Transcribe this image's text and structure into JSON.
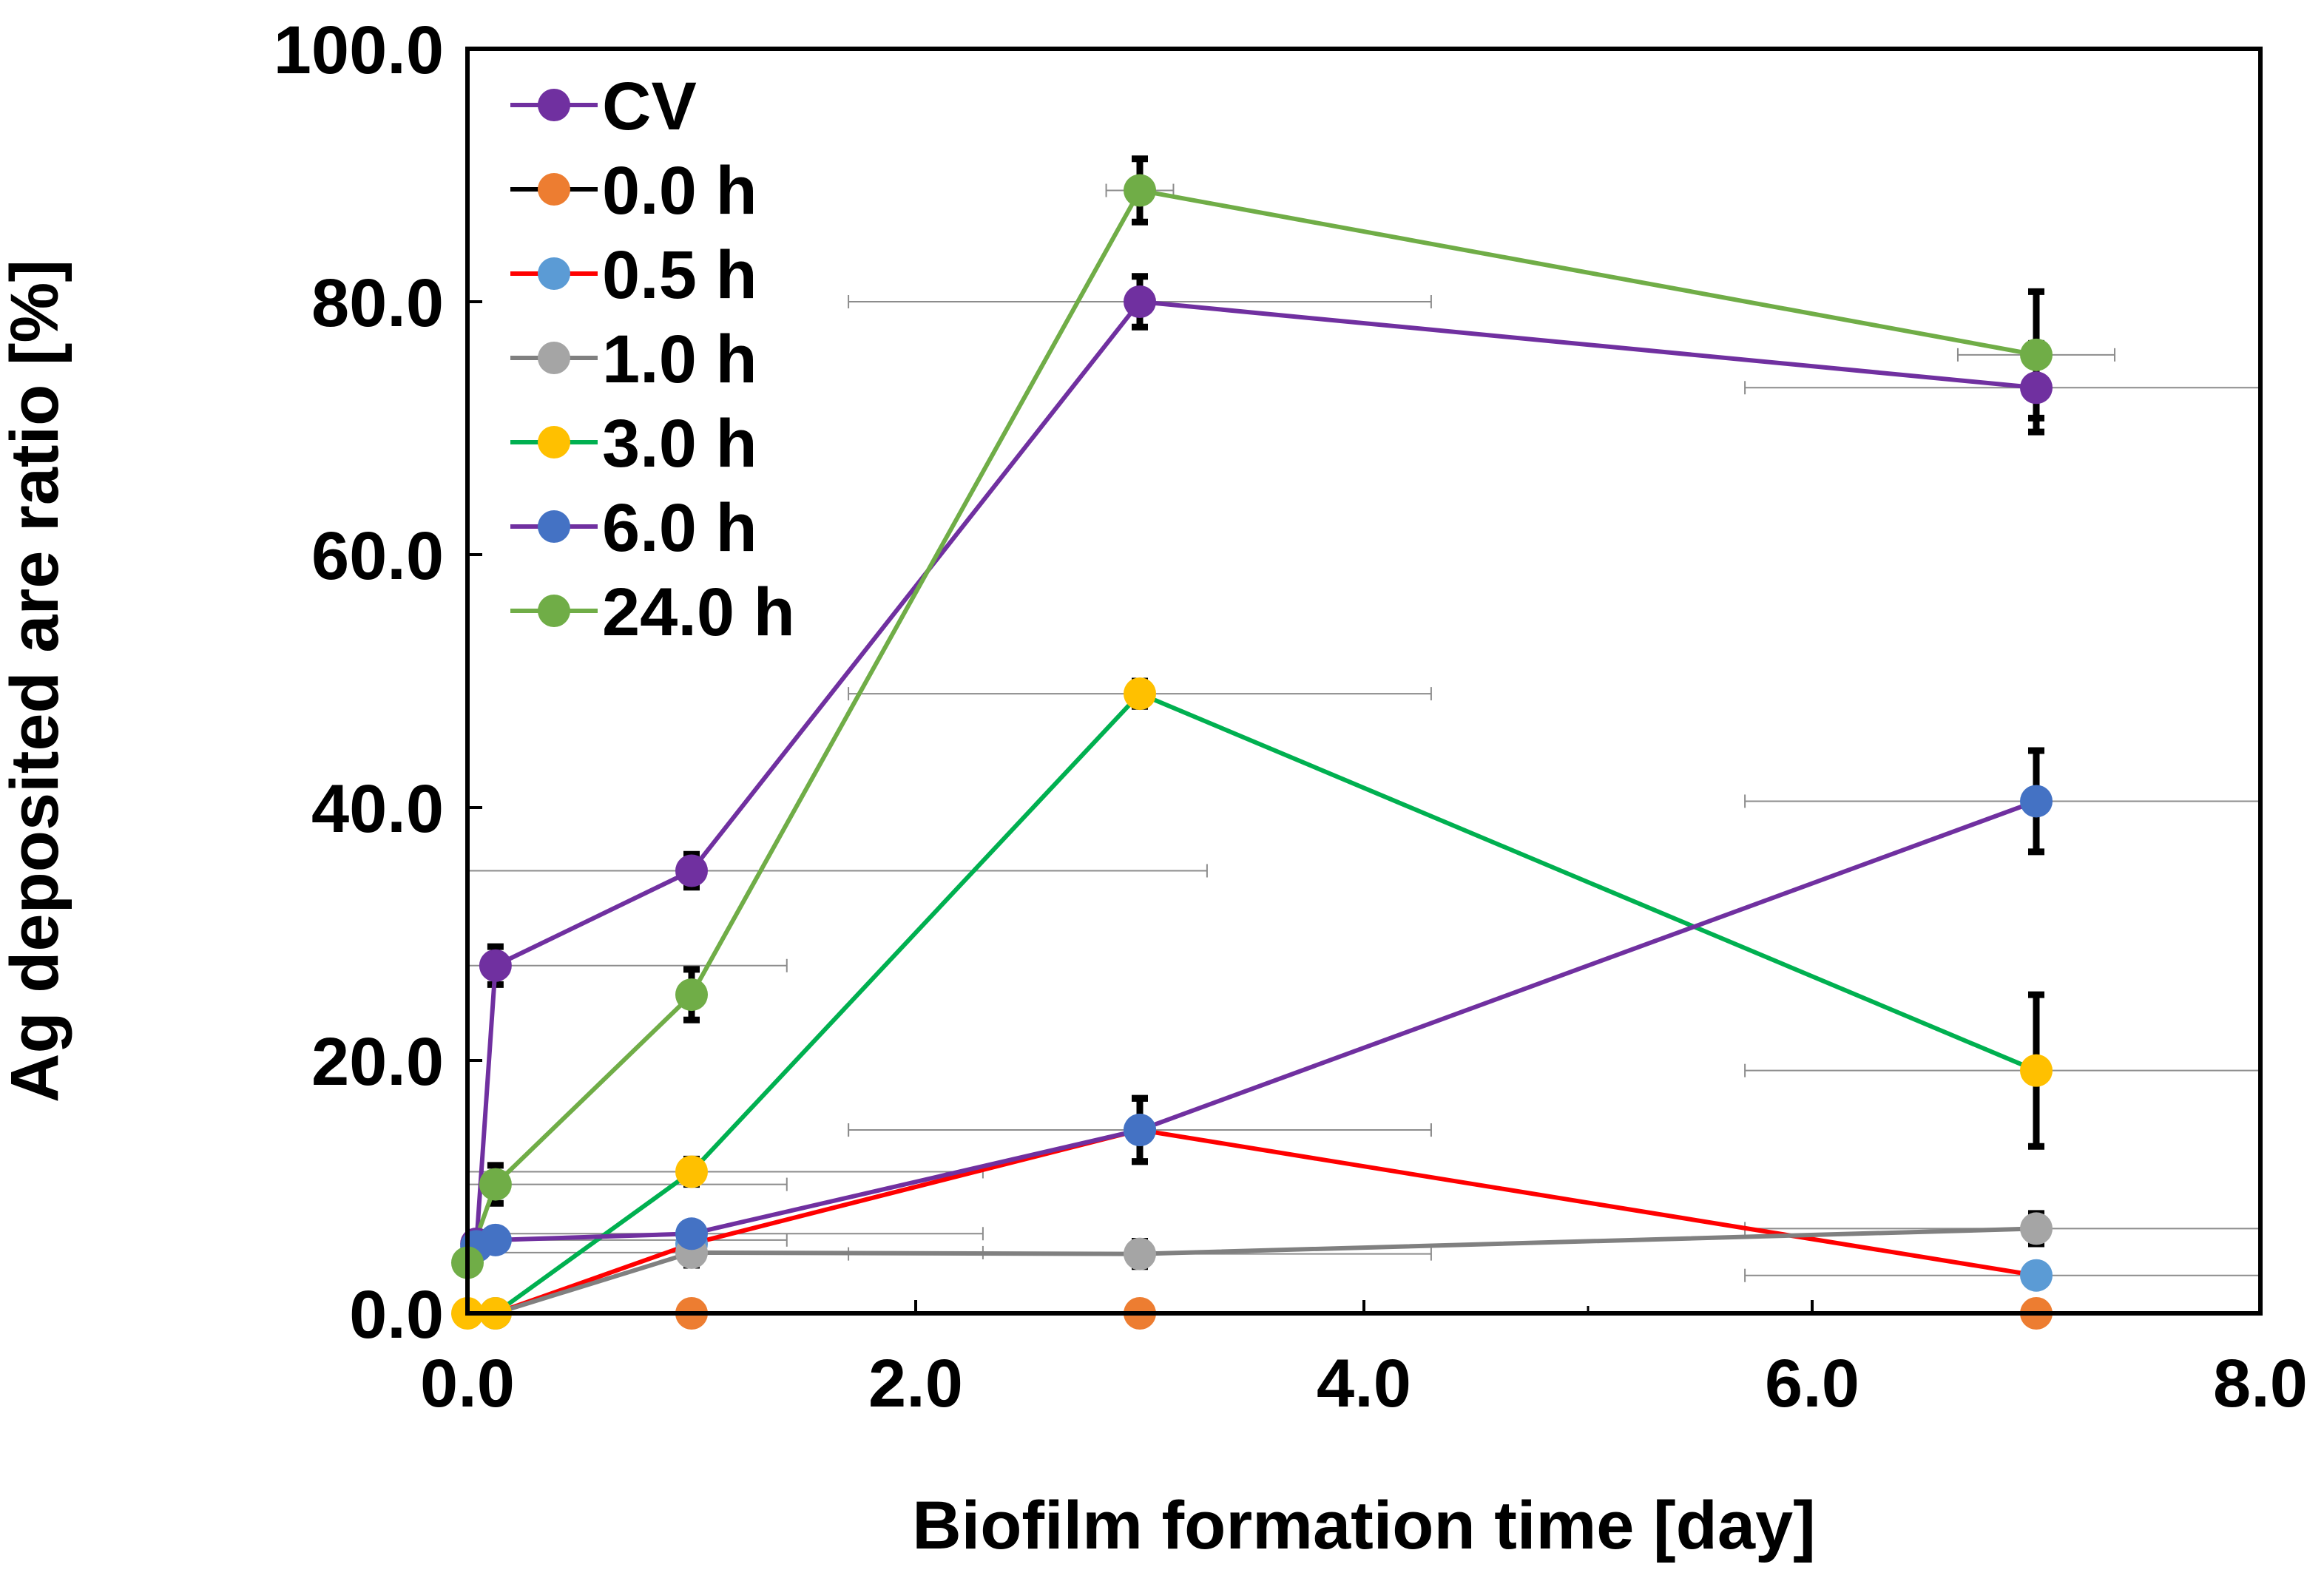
{
  "chart_data": {
    "type": "line",
    "title": "",
    "xlabel": "Biofilm formation time [day]",
    "ylabel": "Ag deposited are ratio [%]",
    "xlim": [
      0,
      8
    ],
    "ylim": [
      0,
      100
    ],
    "x_ticks": [
      "0.0",
      "2.0",
      "4.0",
      "6.0",
      "8.0"
    ],
    "y_ticks": [
      "0.0",
      "20.0",
      "40.0",
      "60.0",
      "80.0",
      "100.0"
    ],
    "legend_position": "top-left",
    "series": [
      {
        "name": "CV",
        "line_color": "#7030A0",
        "marker_color": "#7030A0",
        "points": [
          {
            "x": 0.04,
            "y": 5.5,
            "yerr": 0.5
          },
          {
            "x": 0.125,
            "y": 27.5,
            "yerr": 1.5,
            "xerr": 1.3
          },
          {
            "x": 1.0,
            "y": 35.0,
            "yerr": 1.3,
            "xerr": 2.3
          },
          {
            "x": 3.0,
            "y": 80.0,
            "yerr": 2.0,
            "xerr": 1.3
          },
          {
            "x": 7.0,
            "y": 73.2,
            "yerr": 3.5,
            "xerr": 1.3
          }
        ]
      },
      {
        "name": "0.0 h",
        "line_color": "#000000",
        "marker_color": "#ED7D31",
        "points": [
          {
            "x": 1.0,
            "y": 0.0
          },
          {
            "x": 3.0,
            "y": 0.0
          },
          {
            "x": 7.0,
            "y": 0.0
          }
        ]
      },
      {
        "name": "0.5 h",
        "line_color": "#FF0000",
        "marker_color": "#5B9BD5",
        "points": [
          {
            "x": 0.125,
            "y": 0.0
          },
          {
            "x": 1.0,
            "y": 5.5,
            "yerr": 0.8
          },
          {
            "x": 3.0,
            "y": 14.5,
            "yerr": 2.5,
            "xerr": 1.3
          },
          {
            "x": 7.0,
            "y": 3.0,
            "xerr": 1.3
          }
        ]
      },
      {
        "name": "1.0 h",
        "line_color": "#808080",
        "marker_color": "#A5A5A5",
        "points": [
          {
            "x": 0.125,
            "y": 0.0
          },
          {
            "x": 1.0,
            "y": 4.8,
            "yerr": 1.0,
            "xerr": 1.3
          },
          {
            "x": 3.0,
            "y": 4.7,
            "yerr": 1.0,
            "xerr": 1.3
          },
          {
            "x": 7.0,
            "y": 6.7,
            "yerr": 1.2,
            "xerr": 1.3
          }
        ]
      },
      {
        "name": "3.0 h",
        "line_color": "#00B050",
        "marker_color": "#FFC000",
        "points": [
          {
            "x": 0.0,
            "y": 0.0
          },
          {
            "x": 0.125,
            "y": 0.0
          },
          {
            "x": 1.0,
            "y": 11.2,
            "yerr": 1.0,
            "xerr": 1.3
          },
          {
            "x": 3.0,
            "y": 49.0,
            "yerr": 1.0,
            "xerr": 1.3
          },
          {
            "x": 7.0,
            "y": 19.2,
            "yerr": 6.0,
            "xerr": 1.3
          }
        ]
      },
      {
        "name": "6.0 h",
        "line_color": "#7030A0",
        "marker_color": "#4472C4",
        "points": [
          {
            "x": 0.04,
            "y": 5.3,
            "yerr": 0.5
          },
          {
            "x": 0.125,
            "y": 5.8,
            "yerr": 0.7,
            "xerr": 1.3
          },
          {
            "x": 1.0,
            "y": 6.3,
            "yerr": 0.8,
            "xerr": 1.3
          },
          {
            "x": 3.0,
            "y": 14.5,
            "yerr": 2.5,
            "xerr": 1.3
          },
          {
            "x": 7.0,
            "y": 40.5,
            "yerr": 4.0,
            "xerr": 1.3
          }
        ]
      },
      {
        "name": "24.0 h",
        "line_color": "#70AD47",
        "marker_color": "#70AD47",
        "points": [
          {
            "x": 0.0,
            "y": 4.0,
            "yerr": 0.5
          },
          {
            "x": 0.125,
            "y": 10.2,
            "yerr": 1.5,
            "xerr": 1.3
          },
          {
            "x": 1.0,
            "y": 25.2,
            "yerr": 2.0
          },
          {
            "x": 3.0,
            "y": 88.8,
            "yerr": 2.5,
            "xerr": 0.15
          },
          {
            "x": 7.0,
            "y": 75.8,
            "yerr": 5.0,
            "xerr": 0.35
          }
        ]
      }
    ]
  }
}
